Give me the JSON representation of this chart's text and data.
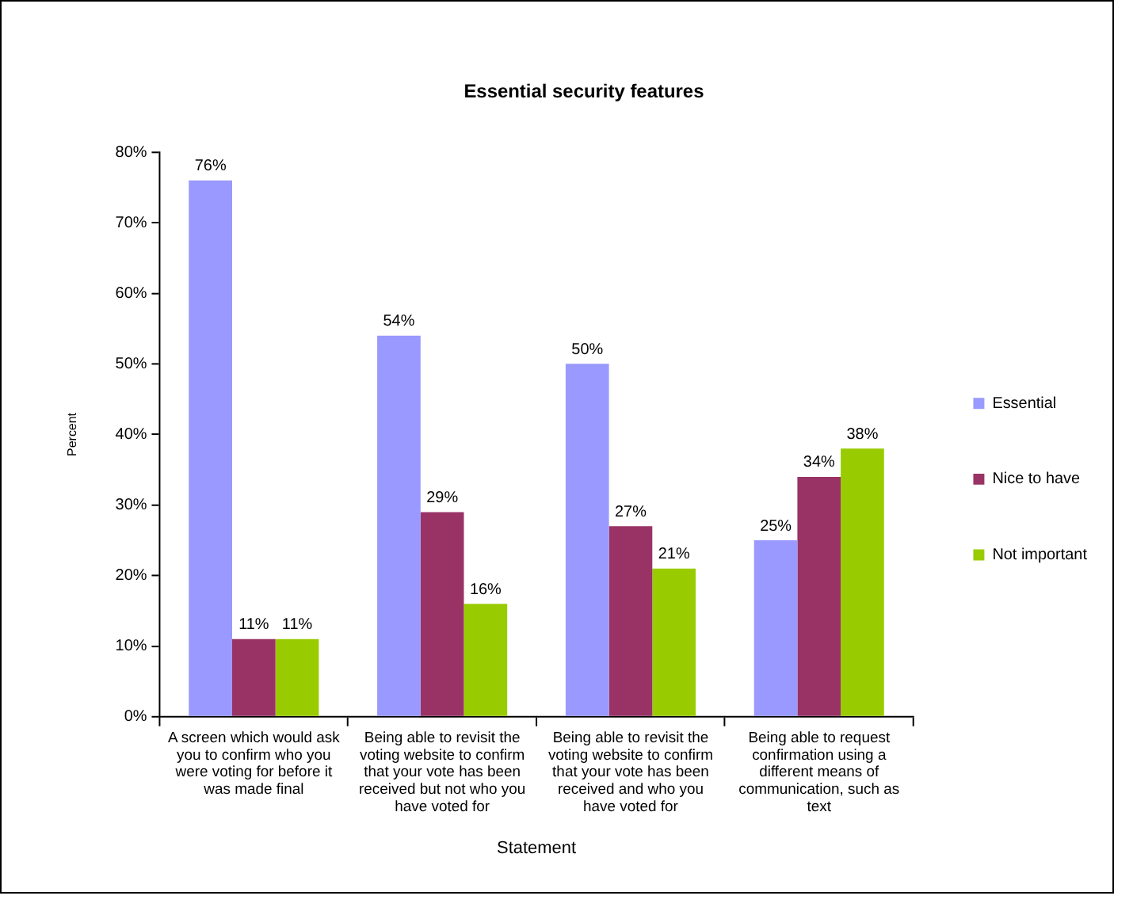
{
  "chart_data": {
    "type": "bar",
    "title": "Essential security features",
    "xlabel": "Statement",
    "ylabel": "Percent",
    "categories": [
      "A screen which would ask you to confirm who you were voting for before it was made final",
      "Being able to revisit the voting website to confirm that your vote has been received but not who you have voted for",
      "Being able to revisit the voting website to confirm that your vote has been received and who you have voted for",
      "Being able to request confirmation using a different means of communication, such as text"
    ],
    "series": [
      {
        "name": "Essential",
        "color": "#9999ff",
        "values": [
          76,
          54,
          50,
          25
        ],
        "value_labels": [
          "76%",
          "54%",
          "50%",
          "25%"
        ]
      },
      {
        "name": "Nice to have",
        "color": "#993366",
        "values": [
          11,
          29,
          27,
          34
        ],
        "value_labels": [
          "11%",
          "29%",
          "27%",
          "34%"
        ]
      },
      {
        "name": "Not important",
        "color": "#99cc00",
        "values": [
          11,
          16,
          21,
          38
        ],
        "value_labels": [
          "11%",
          "16%",
          "21%",
          "38%"
        ]
      }
    ],
    "ylim": [
      0,
      80
    ],
    "yticks": [
      {
        "value": 0,
        "label": "0%"
      },
      {
        "value": 10,
        "label": "10%"
      },
      {
        "value": 20,
        "label": "20%"
      },
      {
        "value": 30,
        "label": "30%"
      },
      {
        "value": 40,
        "label": "40%"
      },
      {
        "value": 50,
        "label": "50%"
      },
      {
        "value": 60,
        "label": "60%"
      },
      {
        "value": 70,
        "label": "70%"
      },
      {
        "value": 80,
        "label": "80%"
      }
    ],
    "legend": "right"
  }
}
